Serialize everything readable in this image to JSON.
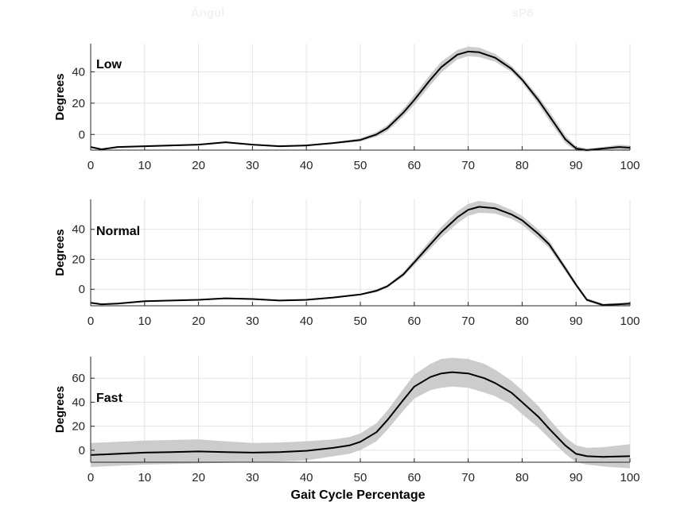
{
  "figure": {
    "faint_titles": [
      "Ángul",
      "sP8"
    ],
    "xlabel": "Gait Cycle Percentage"
  },
  "chart_data": [
    {
      "type": "line",
      "panel_label": "Low",
      "ylabel": "Degrees",
      "xlim": [
        0,
        100
      ],
      "ylim": [
        -10,
        58
      ],
      "xticks": [
        0,
        10,
        20,
        30,
        40,
        50,
        60,
        70,
        80,
        90,
        100
      ],
      "yticks": [
        0,
        20,
        40
      ],
      "grid": true,
      "series": [
        {
          "x": [
            0,
            2,
            5,
            10,
            15,
            20,
            25,
            30,
            35,
            40,
            45,
            50,
            53,
            55,
            58,
            60,
            63,
            65,
            68,
            70,
            72,
            75,
            78,
            80,
            83,
            85,
            88,
            90,
            92,
            95,
            98,
            100
          ],
          "mean": [
            -8,
            -9.5,
            -8,
            -7.5,
            -7,
            -6.5,
            -5,
            -6.5,
            -7.5,
            -7,
            -5.5,
            -3.5,
            0,
            4,
            14,
            22,
            35,
            43,
            51,
            53,
            52.5,
            49,
            42,
            35,
            22,
            12,
            -3,
            -9,
            -10,
            -9,
            -8,
            -8.5
          ],
          "sd": [
            0.5,
            0.5,
            0.5,
            0.5,
            0.5,
            0.5,
            0.5,
            0.5,
            0.5,
            0.5,
            0.5,
            1,
            1.5,
            2,
            2.5,
            3,
            3.5,
            3.5,
            3,
            3,
            3,
            2.5,
            2,
            2,
            2.5,
            3,
            2.5,
            1.5,
            1,
            1,
            1.5,
            1.5
          ]
        }
      ]
    },
    {
      "type": "line",
      "panel_label": "Normal",
      "ylabel": "Degrees",
      "xlim": [
        0,
        100
      ],
      "ylim": [
        -11,
        60
      ],
      "xticks": [
        0,
        10,
        20,
        30,
        40,
        50,
        60,
        70,
        80,
        90,
        100
      ],
      "yticks": [
        0,
        20,
        40
      ],
      "grid": true,
      "series": [
        {
          "x": [
            0,
            2,
            5,
            10,
            15,
            20,
            25,
            30,
            35,
            40,
            45,
            50,
            53,
            55,
            58,
            60,
            63,
            65,
            68,
            70,
            72,
            75,
            78,
            80,
            83,
            85,
            88,
            90,
            92,
            95,
            98,
            100
          ],
          "mean": [
            -9,
            -10,
            -9.5,
            -8,
            -7.5,
            -7,
            -6,
            -6.5,
            -7.5,
            -7,
            -5.5,
            -3.5,
            -1,
            2,
            10,
            18,
            30,
            38,
            48,
            53,
            55,
            54,
            50,
            46,
            37,
            30,
            14,
            3,
            -7,
            -10.5,
            -10,
            -9.5
          ],
          "sd": [
            0.5,
            0.5,
            0.5,
            0.5,
            0.5,
            0.5,
            0.5,
            0.5,
            0.5,
            0.5,
            0.5,
            0.5,
            1,
            1,
            1.5,
            2,
            3,
            3.5,
            4,
            4,
            4,
            3.5,
            3,
            3,
            3,
            2.5,
            2,
            1.5,
            1,
            1,
            1,
            1
          ]
        }
      ]
    },
    {
      "type": "line",
      "panel_label": "Fast",
      "ylabel": "Degrees",
      "xlim": [
        0,
        100
      ],
      "ylim": [
        -10,
        78
      ],
      "xticks": [
        0,
        10,
        20,
        30,
        40,
        50,
        60,
        70,
        80,
        90,
        100
      ],
      "yticks": [
        0,
        20,
        40,
        60
      ],
      "grid": true,
      "series": [
        {
          "x": [
            0,
            5,
            10,
            15,
            20,
            25,
            30,
            35,
            40,
            45,
            48,
            50,
            53,
            55,
            58,
            60,
            63,
            65,
            67,
            70,
            73,
            75,
            78,
            80,
            83,
            85,
            88,
            90,
            92,
            95,
            100
          ],
          "mean": [
            -4,
            -3,
            -2,
            -1.5,
            -1,
            -1.5,
            -2,
            -1.5,
            -0.5,
            2,
            4,
            7,
            15,
            25,
            42,
            53,
            61,
            64,
            65,
            64,
            60,
            56,
            48,
            40,
            28,
            18,
            4,
            -3,
            -5,
            -5.5,
            -5
          ],
          "sd": [
            10,
            10,
            10,
            10,
            10,
            9,
            8,
            8,
            8,
            7,
            7,
            7,
            7.5,
            8,
            9,
            10,
            11,
            12,
            12,
            12,
            12,
            11,
            10,
            10,
            9,
            8,
            7,
            7,
            7,
            8,
            10
          ]
        }
      ]
    }
  ]
}
